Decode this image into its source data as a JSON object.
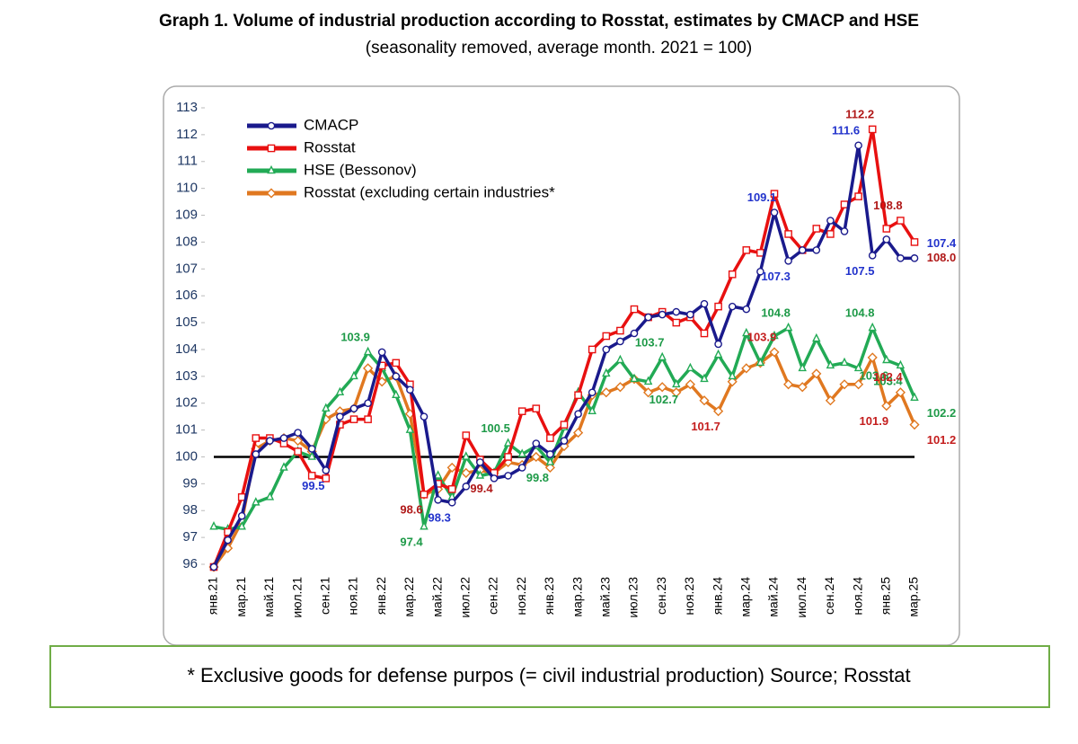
{
  "chart_data": {
    "type": "line",
    "title": "Graph 1. Volume of industrial production according to Rosstat, estimates by CMACP and HSE",
    "subtitle": "(seasonality removed, average month. 2021 = 100)",
    "footnote": "* Exclusive goods for defense purpos (= civil industrial production) Source; Rosstat",
    "categories": [
      "янв.21",
      null,
      "мар.21",
      null,
      "май.21",
      null,
      "июл.21",
      null,
      "сен.21",
      null,
      "ноя.21",
      null,
      "янв.22",
      null,
      "мар.22",
      null,
      "май.22",
      null,
      "июл.22",
      null,
      "сен.22",
      null,
      "ноя.22",
      null,
      "янв.23",
      null,
      "мар.23",
      null,
      "май.23",
      null,
      "июл.23",
      null,
      "сен.23",
      null,
      "ноя.23",
      null,
      "янв.24",
      null,
      "мар.24",
      null,
      "май.24",
      null,
      "июл.24",
      null,
      "сен.24",
      null,
      "ноя.24",
      null,
      "янв.25",
      null,
      "мар.25"
    ],
    "ylim": [
      96,
      113
    ],
    "yticks": [
      96,
      97,
      98,
      99,
      100,
      101,
      102,
      103,
      104,
      105,
      106,
      107,
      108,
      109,
      110,
      111,
      112,
      113
    ],
    "grid": false,
    "hline": 100,
    "legend": "upper-left",
    "series": [
      {
        "name": "CMACP",
        "color": "#1a1a8c",
        "marker": "circle",
        "label_color": "#2233cc",
        "values": [
          95.9,
          96.9,
          97.8,
          100.1,
          100.6,
          100.7,
          100.9,
          100.3,
          99.5,
          101.5,
          101.8,
          102.0,
          103.9,
          103.0,
          102.5,
          101.5,
          98.4,
          98.3,
          98.9,
          99.8,
          99.2,
          99.3,
          99.6,
          100.5,
          100.1,
          100.6,
          101.6,
          102.4,
          104.0,
          104.3,
          104.6,
          105.2,
          105.3,
          105.4,
          105.3,
          105.7,
          104.2,
          105.6,
          105.5,
          106.9,
          109.1,
          107.3,
          107.7,
          107.7,
          108.8,
          108.4,
          111.6,
          107.5,
          108.1,
          107.4,
          107.4
        ],
        "value_labels": [
          null,
          null,
          null,
          null,
          null,
          null,
          null,
          null,
          "99.5",
          null,
          null,
          null,
          null,
          null,
          null,
          null,
          null,
          "98.3",
          null,
          null,
          null,
          null,
          null,
          null,
          null,
          null,
          null,
          null,
          null,
          null,
          null,
          null,
          null,
          null,
          null,
          null,
          null,
          null,
          null,
          null,
          "109.1",
          "107.3",
          null,
          null,
          null,
          null,
          "111.6",
          "107.5",
          null,
          null,
          "107.4"
        ]
      },
      {
        "name": "Rosstat",
        "color": "#e81010",
        "marker": "square",
        "label_color": "#b01818",
        "values": [
          95.9,
          97.2,
          98.5,
          100.7,
          100.7,
          100.5,
          100.2,
          99.3,
          99.2,
          101.2,
          101.4,
          101.4,
          103.4,
          103.5,
          102.7,
          98.6,
          99.0,
          98.8,
          100.8,
          99.9,
          99.4,
          100.0,
          101.7,
          101.8,
          100.7,
          101.2,
          102.3,
          104.0,
          104.5,
          104.7,
          105.5,
          105.2,
          105.4,
          105.0,
          105.2,
          104.6,
          105.6,
          106.8,
          107.7,
          107.6,
          109.8,
          108.3,
          107.7,
          108.5,
          108.3,
          109.4,
          109.7,
          112.2,
          108.5,
          108.8,
          108.0
        ],
        "value_labels": [
          null,
          null,
          null,
          null,
          null,
          null,
          null,
          null,
          null,
          null,
          null,
          null,
          null,
          null,
          null,
          "98.6",
          null,
          null,
          null,
          null,
          "99.4",
          null,
          null,
          null,
          null,
          null,
          null,
          null,
          null,
          null,
          null,
          null,
          null,
          null,
          null,
          null,
          null,
          null,
          null,
          null,
          null,
          null,
          null,
          null,
          null,
          null,
          null,
          "112.2",
          null,
          "108.8",
          "108.0"
        ]
      },
      {
        "name": "HSE (Bessonov)",
        "color": "#22aa55",
        "marker": "triangle",
        "label_color": "#1e9a48",
        "values": [
          97.4,
          97.3,
          97.4,
          98.3,
          98.5,
          99.6,
          100.2,
          100.0,
          101.8,
          102.4,
          103.0,
          103.9,
          103.3,
          102.3,
          101.0,
          97.4,
          99.3,
          98.5,
          100.0,
          99.3,
          99.4,
          100.5,
          100.1,
          100.4,
          99.8,
          101.1,
          102.4,
          101.7,
          103.1,
          103.6,
          102.9,
          102.8,
          103.7,
          102.7,
          103.3,
          102.9,
          103.8,
          103.0,
          104.6,
          103.5,
          104.5,
          104.8,
          103.3,
          104.4,
          103.4,
          103.5,
          103.3,
          104.8,
          103.6,
          103.4,
          102.2
        ],
        "value_labels": [
          null,
          null,
          null,
          null,
          null,
          null,
          null,
          null,
          null,
          null,
          null,
          "103.9",
          null,
          null,
          null,
          "97.4",
          null,
          null,
          null,
          null,
          null,
          "100.5",
          null,
          null,
          "99.8",
          null,
          null,
          null,
          null,
          null,
          null,
          null,
          "103.7",
          "102.7",
          null,
          null,
          null,
          null,
          null,
          null,
          null,
          "104.8",
          null,
          null,
          null,
          null,
          null,
          "104.8",
          "103.6",
          "103.4",
          "102.2"
        ]
      },
      {
        "name": "Rosstat (excluding certain industries*",
        "color": "#e07820",
        "marker": "diamond",
        "label_color": "#c41e1e",
        "values": [
          95.9,
          96.6,
          97.6,
          100.3,
          100.6,
          100.7,
          100.6,
          100.2,
          101.4,
          101.7,
          101.8,
          103.3,
          102.8,
          103.0,
          101.6,
          98.6,
          98.8,
          99.6,
          99.4,
          99.5,
          99.4,
          99.8,
          99.7,
          100.0,
          99.6,
          100.4,
          100.9,
          102.3,
          102.4,
          102.6,
          102.9,
          102.4,
          102.6,
          102.4,
          102.7,
          102.1,
          101.7,
          102.8,
          103.3,
          103.5,
          103.9,
          102.7,
          102.6,
          103.1,
          102.1,
          102.7,
          102.7,
          103.7,
          101.9,
          102.4,
          101.2
        ],
        "value_labels": [
          null,
          null,
          null,
          null,
          null,
          null,
          null,
          null,
          null,
          null,
          null,
          null,
          null,
          null,
          null,
          null,
          null,
          null,
          null,
          null,
          null,
          null,
          null,
          null,
          null,
          null,
          null,
          null,
          null,
          null,
          null,
          null,
          null,
          null,
          null,
          null,
          "101.7",
          null,
          null,
          null,
          "103.9",
          null,
          null,
          null,
          null,
          null,
          null,
          null,
          "101.9",
          "102.4",
          "101.2"
        ]
      }
    ]
  }
}
